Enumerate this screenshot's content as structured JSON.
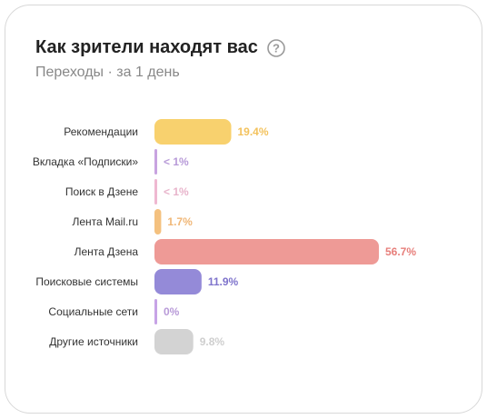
{
  "widget": {
    "title": "Как зрители находят вас",
    "subtitle": "Переходы · за 1 день",
    "help_icon": "question-circle-icon"
  },
  "chart_data": {
    "type": "bar",
    "orientation": "horizontal",
    "categories": [
      "Рекомендации",
      "Вкладка «Подписки»",
      "Поиск в Дзене",
      "Лента Mail.ru",
      "Лента Дзена",
      "Поисковые системы",
      "Социальные сети",
      "Другие источники"
    ],
    "values": [
      19.4,
      0.5,
      0.5,
      1.7,
      56.7,
      11.9,
      0.2,
      9.8
    ],
    "value_labels": [
      "19.4%",
      "< 1%",
      "< 1%",
      "1.7%",
      "56.7%",
      "11.9%",
      "0%",
      "9.8%"
    ],
    "colors": [
      "#f8d16e",
      "#c8a3e0",
      "#efb8d1",
      "#f4c17f",
      "#ee9a96",
      "#948ad8",
      "#c7a3e6",
      "#d3d3d3"
    ],
    "label_colors": [
      "#f3c25d",
      "#b79ad8",
      "#e8b4cb",
      "#f0b777",
      "#e77f7b",
      "#7f74cc",
      "#b89ad8",
      "#cfcfcf"
    ],
    "xlim": [
      0,
      56.7
    ],
    "grid": false,
    "legend": "none"
  }
}
